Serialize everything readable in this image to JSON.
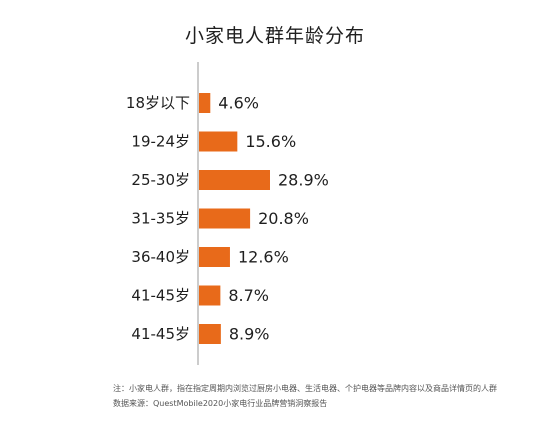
{
  "chart_data": {
    "type": "bar",
    "orientation": "horizontal",
    "title": "小家电人群年龄分布",
    "categories": [
      "18岁以下",
      "19-24岁",
      "25-30岁",
      "31-35岁",
      "36-40岁",
      "41-45岁",
      "41-45岁"
    ],
    "values": [
      4.6,
      15.6,
      28.9,
      20.8,
      12.6,
      8.7,
      8.9
    ],
    "value_labels": [
      "4.6%",
      "15.6%",
      "28.9%",
      "20.8%",
      "12.6%",
      "8.7%",
      "8.9%"
    ],
    "unit": "%",
    "xlim": [
      0,
      28.9
    ],
    "grid": false,
    "legend": "none",
    "bar_color": "#e86a1a"
  },
  "notes": {
    "line1": "注：小家电人群，指在指定周期内浏览过厨房小电器、生活电器、个护电器等品牌内容以及商品详情页的人群",
    "line2": "数据来源：QuestMobile2020小家电行业品牌营销洞察报告"
  }
}
